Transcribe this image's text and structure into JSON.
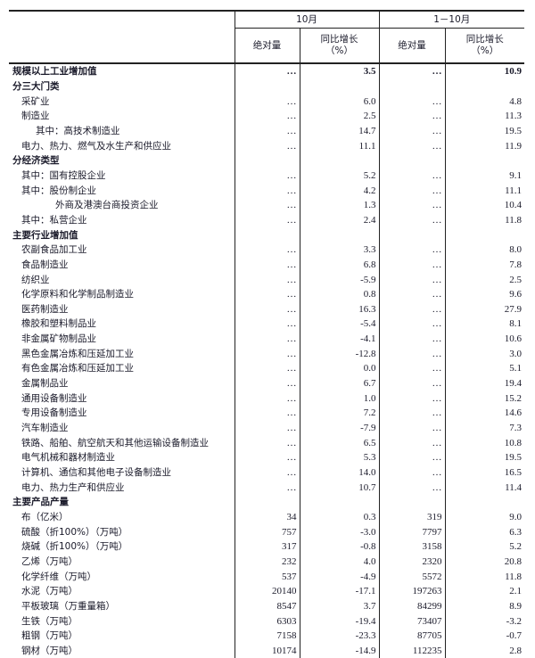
{
  "header": {
    "col_group_1": "10月",
    "col_group_2": "1－10月",
    "abs_label": "绝对量",
    "yoy_label": "同比增长",
    "yoy_unit": "（%）"
  },
  "rows": [
    {
      "label": "规模以上工业增加值",
      "indent": 0,
      "bold": true,
      "v": [
        "…",
        "3.5",
        "…",
        "10.9"
      ]
    },
    {
      "label": "分三大门类",
      "indent": 0,
      "bold": true,
      "v": [
        "",
        "",
        "",
        ""
      ]
    },
    {
      "label": "采矿业",
      "indent": 1,
      "v": [
        "…",
        "6.0",
        "…",
        "4.8"
      ]
    },
    {
      "label": "制造业",
      "indent": 1,
      "v": [
        "…",
        "2.5",
        "…",
        "11.3"
      ]
    },
    {
      "label": "其中：高技术制造业",
      "indent": 2,
      "v": [
        "…",
        "14.7",
        "…",
        "19.5"
      ]
    },
    {
      "label": "电力、热力、燃气及水生产和供应业",
      "indent": 1,
      "v": [
        "…",
        "11.1",
        "…",
        "11.9"
      ]
    },
    {
      "label": "分经济类型",
      "indent": 0,
      "bold": true,
      "v": [
        "",
        "",
        "",
        ""
      ]
    },
    {
      "label": "其中：国有控股企业",
      "indent": 1,
      "v": [
        "…",
        "5.2",
        "…",
        "9.1"
      ]
    },
    {
      "label": "其中：股份制企业",
      "indent": 1,
      "v": [
        "…",
        "4.2",
        "…",
        "11.1"
      ]
    },
    {
      "label": "外商及港澳台商投资企业",
      "indent": 3,
      "v": [
        "…",
        "1.3",
        "…",
        "10.4"
      ]
    },
    {
      "label": "其中：私营企业",
      "indent": 1,
      "v": [
        "…",
        "2.4",
        "…",
        "11.8"
      ]
    },
    {
      "label": "主要行业增加值",
      "indent": 0,
      "bold": true,
      "v": [
        "",
        "",
        "",
        ""
      ]
    },
    {
      "label": "农副食品加工业",
      "indent": 1,
      "v": [
        "…",
        "3.3",
        "…",
        "8.0"
      ]
    },
    {
      "label": "食品制造业",
      "indent": 1,
      "v": [
        "…",
        "6.8",
        "…",
        "7.8"
      ]
    },
    {
      "label": "纺织业",
      "indent": 1,
      "v": [
        "…",
        "-5.9",
        "…",
        "2.5"
      ]
    },
    {
      "label": "化学原料和化学制品制造业",
      "indent": 1,
      "v": [
        "…",
        "0.8",
        "…",
        "9.6"
      ]
    },
    {
      "label": "医药制造业",
      "indent": 1,
      "v": [
        "…",
        "16.3",
        "…",
        "27.9"
      ]
    },
    {
      "label": "橡胶和塑料制品业",
      "indent": 1,
      "v": [
        "…",
        "-5.4",
        "…",
        "8.1"
      ]
    },
    {
      "label": "非金属矿物制品业",
      "indent": 1,
      "v": [
        "…",
        "-4.1",
        "…",
        "10.6"
      ]
    },
    {
      "label": "黑色金属冶炼和压延加工业",
      "indent": 1,
      "v": [
        "…",
        "-12.8",
        "…",
        "3.0"
      ]
    },
    {
      "label": "有色金属冶炼和压延加工业",
      "indent": 1,
      "v": [
        "…",
        "0.0",
        "…",
        "5.1"
      ]
    },
    {
      "label": "金属制品业",
      "indent": 1,
      "v": [
        "…",
        "6.7",
        "…",
        "19.4"
      ]
    },
    {
      "label": "通用设备制造业",
      "indent": 1,
      "v": [
        "…",
        "1.0",
        "…",
        "15.2"
      ]
    },
    {
      "label": "专用设备制造业",
      "indent": 1,
      "v": [
        "…",
        "7.2",
        "…",
        "14.6"
      ]
    },
    {
      "label": "汽车制造业",
      "indent": 1,
      "v": [
        "…",
        "-7.9",
        "…",
        "7.3"
      ]
    },
    {
      "label": "铁路、船舶、航空航天和其他运输设备制造业",
      "indent": 1,
      "v": [
        "…",
        "6.5",
        "…",
        "10.8"
      ]
    },
    {
      "label": "电气机械和器材制造业",
      "indent": 1,
      "v": [
        "…",
        "5.3",
        "…",
        "19.5"
      ]
    },
    {
      "label": "计算机、通信和其他电子设备制造业",
      "indent": 1,
      "v": [
        "…",
        "14.0",
        "…",
        "16.5"
      ]
    },
    {
      "label": "电力、热力生产和供应业",
      "indent": 1,
      "v": [
        "…",
        "10.7",
        "…",
        "11.4"
      ]
    },
    {
      "label": "主要产品产量",
      "indent": 0,
      "bold": true,
      "v": [
        "",
        "",
        "",
        ""
      ]
    },
    {
      "label": "布（亿米）",
      "indent": 1,
      "v": [
        "34",
        "0.3",
        "319",
        "9.0"
      ]
    },
    {
      "label": "硫酸（折100%）（万吨）",
      "indent": 1,
      "v": [
        "757",
        "-3.0",
        "7797",
        "6.3"
      ]
    },
    {
      "label": "烧碱（折100%）（万吨）",
      "indent": 1,
      "v": [
        "317",
        "-0.8",
        "3158",
        "5.2"
      ]
    },
    {
      "label": "乙烯（万吨）",
      "indent": 1,
      "v": [
        "232",
        "4.0",
        "2320",
        "20.8"
      ]
    },
    {
      "label": "化学纤维（万吨）",
      "indent": 1,
      "v": [
        "537",
        "-4.9",
        "5572",
        "11.8"
      ]
    },
    {
      "label": "水泥（万吨）",
      "indent": 1,
      "v": [
        "20140",
        "-17.1",
        "197263",
        "2.1"
      ]
    },
    {
      "label": "平板玻璃（万重量箱）",
      "indent": 1,
      "v": [
        "8547",
        "3.7",
        "84299",
        "8.9"
      ]
    },
    {
      "label": "生铁（万吨）",
      "indent": 1,
      "v": [
        "6303",
        "-19.4",
        "73407",
        "-3.2"
      ]
    },
    {
      "label": "粗钢（万吨）",
      "indent": 1,
      "v": [
        "7158",
        "-23.3",
        "87705",
        "-0.7"
      ]
    },
    {
      "label": "钢材（万吨）",
      "indent": 1,
      "v": [
        "10174",
        "-14.9",
        "112235",
        "2.8"
      ]
    }
  ]
}
